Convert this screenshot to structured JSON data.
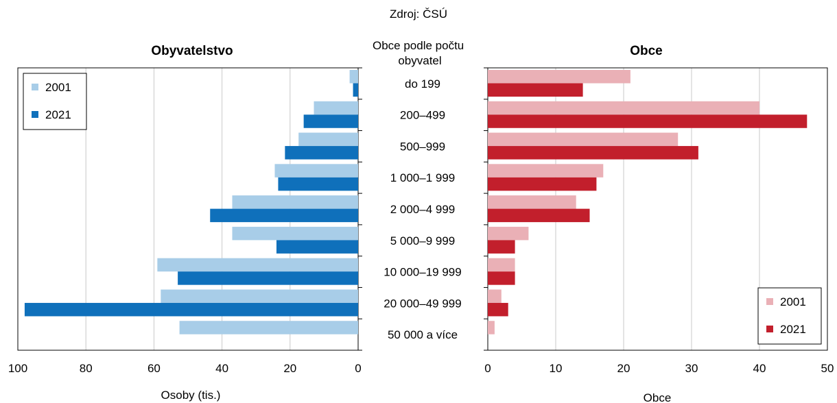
{
  "source": "Zdroj: ČSÚ",
  "category_header": "Obce podle počtu obyvatel",
  "chart_data": [
    {
      "type": "bar",
      "orientation": "horizontal",
      "x_direction": "reversed",
      "title": "Obyvatelstvo",
      "xlabel": "Osoby (tis.)",
      "xlim": [
        0,
        100
      ],
      "xticks": [
        0,
        20,
        40,
        60,
        80,
        100
      ],
      "grid": true,
      "legend_position": "top-left",
      "categories": [
        "do 199",
        "200–499",
        "500–999",
        "1 000–1 999",
        "2 000–4 999",
        "5 000–9 999",
        "10 000–19 999",
        "20 000–49 999",
        "50 000 a více"
      ],
      "series": [
        {
          "name": "2001",
          "color": "#a8cde8",
          "values": [
            2.5,
            13,
            17.5,
            24.5,
            37,
            37,
            59,
            58,
            52.5
          ]
        },
        {
          "name": "2021",
          "color": "#0f70bb",
          "values": [
            1.5,
            16,
            21.5,
            23.5,
            43.5,
            24,
            53,
            98,
            0
          ]
        }
      ]
    },
    {
      "type": "bar",
      "orientation": "horizontal",
      "title": "Obce",
      "xlabel": "Obce",
      "xlim": [
        0,
        50
      ],
      "xticks": [
        0,
        10,
        20,
        30,
        40,
        50
      ],
      "grid": true,
      "legend_position": "bottom-right",
      "categories": [
        "do 199",
        "200–499",
        "500–999",
        "1 000–1 999",
        "2 000–4 999",
        "5 000–9 999",
        "10 000–19 999",
        "20 000–49 999",
        "50 000 a více"
      ],
      "series": [
        {
          "name": "2001",
          "color": "#eab0b6",
          "values": [
            21,
            40,
            28,
            17,
            13,
            6,
            4,
            2,
            1
          ]
        },
        {
          "name": "2021",
          "color": "#c21f2c",
          "values": [
            14,
            47,
            31,
            16,
            15,
            4,
            4,
            3,
            0
          ]
        }
      ]
    }
  ]
}
